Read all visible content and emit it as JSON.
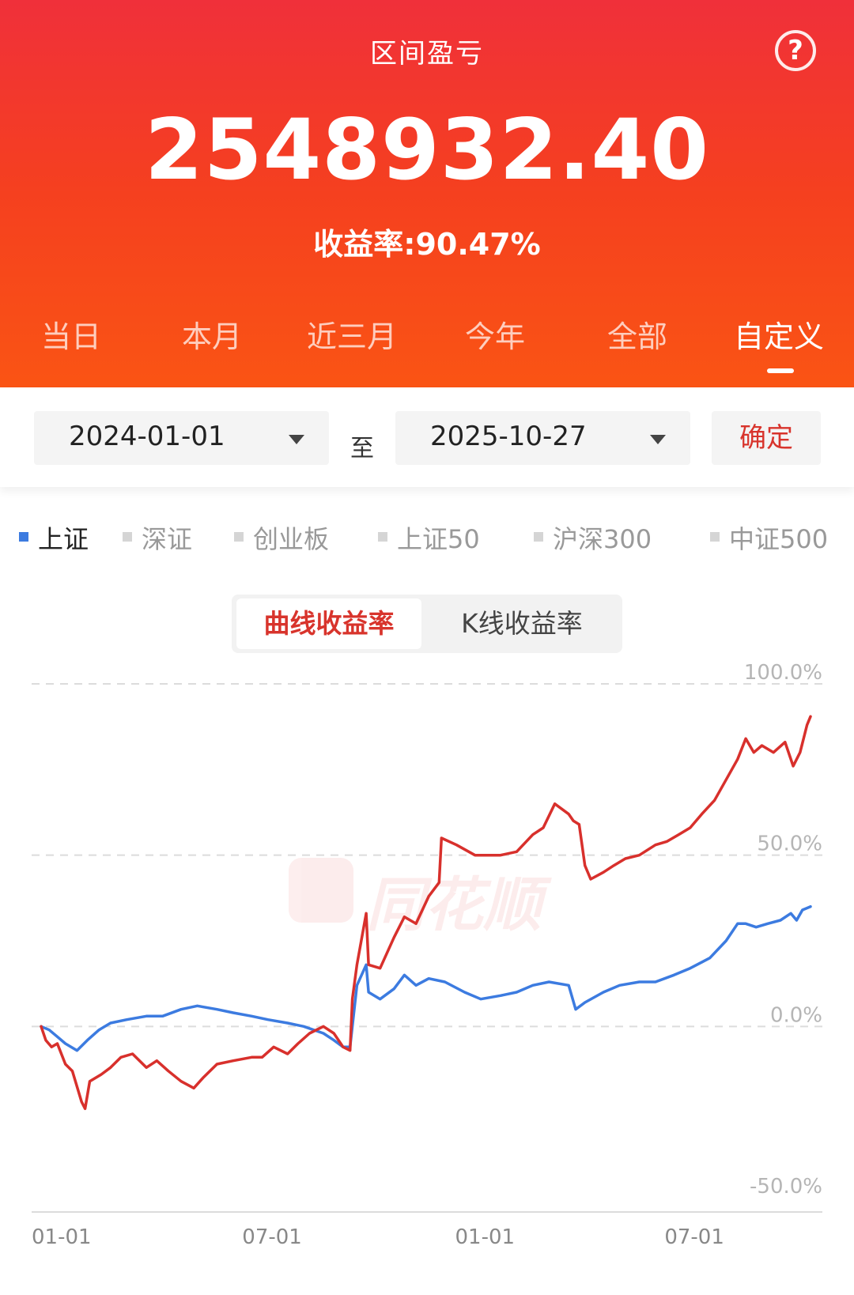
{
  "header": {
    "title": "区间盈亏",
    "help_icon": "question-circle-icon",
    "amount": "2548932.40",
    "rate_text": "收益率:90.47%"
  },
  "tabs": [
    {
      "label": "当日"
    },
    {
      "label": "本月"
    },
    {
      "label": "近三月"
    },
    {
      "label": "今年"
    },
    {
      "label": "全部"
    },
    {
      "label": "自定义",
      "active": true
    }
  ],
  "date_range": {
    "start": "2024-01-01",
    "separator": "至",
    "end": "2025-10-27",
    "confirm_label": "确定"
  },
  "legend": [
    {
      "label": "上证",
      "active": true
    },
    {
      "label": "深证"
    },
    {
      "label": "创业板"
    },
    {
      "label": "上证50"
    },
    {
      "label": "沪深300"
    },
    {
      "label": "中证500"
    }
  ],
  "toggle": {
    "curve_label": "曲线收益率",
    "kline_label": "K线收益率"
  },
  "watermark": {
    "text": "同花顺"
  },
  "colors": {
    "accent": "#d8342c",
    "header_top": "#f0303a",
    "header_bottom": "#fa5414",
    "portfolio_line": "#d8302c",
    "index_line": "#3c7be0"
  },
  "chart_data": {
    "type": "line",
    "x_ticks": [
      "01-01",
      "07-01",
      "01-01",
      "07-01"
    ],
    "y_ticks": [
      "100.0%",
      "50.0%",
      "0.0%",
      "-50.0%"
    ],
    "ylim": [
      -50,
      100
    ],
    "x_range": [
      "2024-01-01",
      "2025-10-27"
    ],
    "series": [
      {
        "role": "portfolio",
        "color": "#d8302c",
        "points": [
          [
            "2024-01-01",
            0
          ],
          [
            "2024-01-05",
            -4
          ],
          [
            "2024-01-10",
            -6
          ],
          [
            "2024-01-15",
            -5
          ],
          [
            "2024-01-22",
            -11
          ],
          [
            "2024-01-28",
            -13
          ],
          [
            "2024-02-05",
            -22
          ],
          [
            "2024-02-08",
            -24
          ],
          [
            "2024-02-12",
            -16
          ],
          [
            "2024-02-22",
            -14
          ],
          [
            "2024-03-01",
            -12
          ],
          [
            "2024-03-10",
            -9
          ],
          [
            "2024-03-20",
            -8
          ],
          [
            "2024-04-01",
            -12
          ],
          [
            "2024-04-10",
            -10
          ],
          [
            "2024-04-20",
            -13
          ],
          [
            "2024-05-01",
            -16
          ],
          [
            "2024-05-12",
            -18
          ],
          [
            "2024-05-20",
            -15
          ],
          [
            "2024-06-01",
            -11
          ],
          [
            "2024-06-15",
            -10
          ],
          [
            "2024-07-01",
            -9
          ],
          [
            "2024-07-10",
            -9
          ],
          [
            "2024-07-20",
            -6
          ],
          [
            "2024-08-01",
            -8
          ],
          [
            "2024-08-10",
            -5
          ],
          [
            "2024-08-20",
            -2
          ],
          [
            "2024-09-01",
            0
          ],
          [
            "2024-09-10",
            -2
          ],
          [
            "2024-09-18",
            -6
          ],
          [
            "2024-09-24",
            -7
          ],
          [
            "2024-09-26",
            8
          ],
          [
            "2024-09-30",
            18
          ],
          [
            "2024-10-08",
            33
          ],
          [
            "2024-10-10",
            18
          ],
          [
            "2024-10-20",
            17
          ],
          [
            "2024-11-01",
            26
          ],
          [
            "2024-11-10",
            32
          ],
          [
            "2024-11-20",
            30
          ],
          [
            "2024-12-01",
            38
          ],
          [
            "2024-12-10",
            42
          ],
          [
            "2024-12-12",
            55
          ],
          [
            "2024-12-25",
            53
          ],
          [
            "2025-01-10",
            50
          ],
          [
            "2025-01-20",
            50
          ],
          [
            "2025-02-01",
            50
          ],
          [
            "2025-02-15",
            51
          ],
          [
            "2025-03-01",
            56
          ],
          [
            "2025-03-10",
            58
          ],
          [
            "2025-03-20",
            65
          ],
          [
            "2025-04-01",
            62
          ],
          [
            "2025-04-05",
            60
          ],
          [
            "2025-04-10",
            59
          ],
          [
            "2025-04-15",
            47
          ],
          [
            "2025-04-20",
            43
          ],
          [
            "2025-05-01",
            45
          ],
          [
            "2025-05-10",
            47
          ],
          [
            "2025-05-20",
            49
          ],
          [
            "2025-06-01",
            50
          ],
          [
            "2025-06-15",
            53
          ],
          [
            "2025-06-25",
            54
          ],
          [
            "2025-07-05",
            56
          ],
          [
            "2025-07-15",
            58
          ],
          [
            "2025-07-25",
            62
          ],
          [
            "2025-08-05",
            66
          ],
          [
            "2025-08-15",
            72
          ],
          [
            "2025-08-25",
            78
          ],
          [
            "2025-09-01",
            84
          ],
          [
            "2025-09-08",
            80
          ],
          [
            "2025-09-15",
            82
          ],
          [
            "2025-09-25",
            80
          ],
          [
            "2025-10-05",
            83
          ],
          [
            "2025-10-12",
            76
          ],
          [
            "2025-10-18",
            80
          ],
          [
            "2025-10-24",
            88
          ],
          [
            "2025-10-27",
            90.47
          ]
        ]
      },
      {
        "role": "index",
        "name": "上证",
        "color": "#3c7be0",
        "points": [
          [
            "2024-01-01",
            0
          ],
          [
            "2024-01-08",
            -1
          ],
          [
            "2024-01-15",
            -3
          ],
          [
            "2024-01-22",
            -5
          ],
          [
            "2024-02-01",
            -7
          ],
          [
            "2024-02-10",
            -4
          ],
          [
            "2024-02-20",
            -1
          ],
          [
            "2024-03-01",
            1
          ],
          [
            "2024-03-15",
            2
          ],
          [
            "2024-04-01",
            3
          ],
          [
            "2024-04-15",
            3
          ],
          [
            "2024-05-01",
            5
          ],
          [
            "2024-05-15",
            6
          ],
          [
            "2024-06-01",
            5
          ],
          [
            "2024-06-15",
            4
          ],
          [
            "2024-07-01",
            3
          ],
          [
            "2024-07-15",
            2
          ],
          [
            "2024-08-01",
            1
          ],
          [
            "2024-08-15",
            0
          ],
          [
            "2024-09-01",
            -2
          ],
          [
            "2024-09-10",
            -4
          ],
          [
            "2024-09-18",
            -6
          ],
          [
            "2024-09-24",
            -6
          ],
          [
            "2024-09-30",
            12
          ],
          [
            "2024-10-08",
            18
          ],
          [
            "2024-10-10",
            10
          ],
          [
            "2024-10-20",
            8
          ],
          [
            "2024-11-01",
            11
          ],
          [
            "2024-11-10",
            15
          ],
          [
            "2024-11-20",
            12
          ],
          [
            "2024-12-01",
            14
          ],
          [
            "2024-12-15",
            13
          ],
          [
            "2025-01-01",
            10
          ],
          [
            "2025-01-15",
            8
          ],
          [
            "2025-02-01",
            9
          ],
          [
            "2025-02-15",
            10
          ],
          [
            "2025-03-01",
            12
          ],
          [
            "2025-03-15",
            13
          ],
          [
            "2025-04-01",
            12
          ],
          [
            "2025-04-07",
            5
          ],
          [
            "2025-04-15",
            7
          ],
          [
            "2025-05-01",
            10
          ],
          [
            "2025-05-15",
            12
          ],
          [
            "2025-06-01",
            13
          ],
          [
            "2025-06-15",
            13
          ],
          [
            "2025-07-01",
            15
          ],
          [
            "2025-07-15",
            17
          ],
          [
            "2025-08-01",
            20
          ],
          [
            "2025-08-15",
            25
          ],
          [
            "2025-08-25",
            30
          ],
          [
            "2025-09-01",
            30
          ],
          [
            "2025-09-10",
            29
          ],
          [
            "2025-09-20",
            30
          ],
          [
            "2025-10-01",
            31
          ],
          [
            "2025-10-10",
            33
          ],
          [
            "2025-10-15",
            31
          ],
          [
            "2025-10-20",
            34
          ],
          [
            "2025-10-27",
            35
          ]
        ]
      }
    ]
  }
}
